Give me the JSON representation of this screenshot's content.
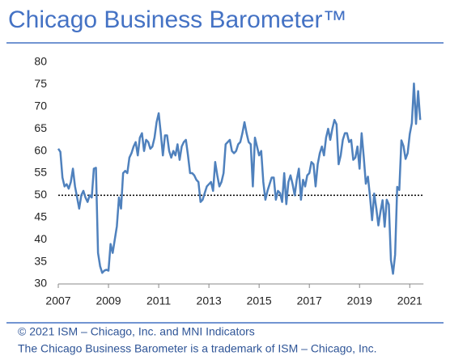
{
  "chart_data": {
    "type": "line",
    "title": "Chicago Business Barometer™",
    "footer": [
      "© 2021 ISM – Chicago, Inc. and MNI Indicators",
      "The Chicago Business Barometer is a trademark of ISM – Chicago, Inc."
    ],
    "categories": [
      "2007",
      null,
      null,
      null,
      null,
      null,
      null,
      null,
      null,
      null,
      null,
      null,
      null,
      null,
      null,
      null,
      null,
      null,
      null,
      null,
      null,
      null,
      null,
      null,
      "2009",
      null,
      null,
      null,
      null,
      null,
      null,
      null,
      null,
      null,
      null,
      null,
      null,
      null,
      null,
      null,
      null,
      null,
      null,
      null,
      null,
      null,
      null,
      null,
      "2011",
      null,
      null,
      null,
      null,
      null,
      null,
      null,
      null,
      null,
      null,
      null,
      null,
      null,
      null,
      null,
      null,
      null,
      null,
      null,
      null,
      null,
      null,
      null,
      "2013",
      null,
      null,
      null,
      null,
      null,
      null,
      null,
      null,
      null,
      null,
      null,
      null,
      null,
      null,
      null,
      null,
      null,
      null,
      null,
      null,
      null,
      null,
      null,
      "2015",
      null,
      null,
      null,
      null,
      null,
      null,
      null,
      null,
      null,
      null,
      null,
      null,
      null,
      null,
      null,
      null,
      null,
      null,
      null,
      null,
      null,
      null,
      null,
      "2017",
      null,
      null,
      null,
      null,
      null,
      null,
      null,
      null,
      null,
      null,
      null,
      null,
      null,
      null,
      null,
      null,
      null,
      null,
      null,
      null,
      null,
      null,
      null,
      "2019",
      null,
      null,
      null,
      null,
      null,
      null,
      null,
      null,
      null,
      null,
      null,
      null,
      null,
      null,
      null,
      null,
      null,
      null,
      null,
      null,
      null,
      null,
      null,
      "2021",
      null,
      null,
      null,
      null,
      null
    ],
    "series": [
      {
        "color": "#4f81bd",
        "values": [
          60.5,
          59.8,
          54,
          52,
          52.5,
          51.5,
          53,
          56,
          52,
          49.5,
          47,
          50,
          51,
          49.5,
          48.5,
          50,
          49.5,
          56,
          56.2,
          37,
          34,
          32.5,
          33,
          33.2,
          33,
          39,
          37,
          40,
          43,
          49.5,
          47,
          55,
          55.5,
          55,
          58.5,
          59.5,
          61,
          62,
          59,
          63,
          64,
          60,
          62.5,
          62,
          60.5,
          61,
          63,
          66.5,
          68.5,
          64,
          59,
          63.5,
          63.5,
          60,
          58.5,
          60,
          59,
          61.5,
          58,
          61,
          62,
          62.5,
          59,
          55,
          55,
          54.5,
          53.5,
          53,
          48.5,
          49,
          50.5,
          52,
          52.5,
          53,
          51,
          57.5,
          54.5,
          52,
          53,
          55,
          61.5,
          62,
          62.5,
          60,
          59.5,
          60,
          61.5,
          62,
          64,
          66.5,
          64,
          62,
          61.5,
          52,
          63,
          61,
          59,
          60,
          53,
          49,
          51,
          52.5,
          54,
          54,
          49,
          51,
          50.5,
          48.5,
          55,
          48,
          53,
          54.5,
          52.5,
          50,
          53.5,
          56,
          49,
          53.5,
          52,
          54.5,
          55,
          57.5,
          57,
          52,
          57,
          59.5,
          61,
          59,
          63,
          65,
          62.5,
          65,
          67,
          66,
          57,
          59,
          62.5,
          64,
          64,
          62,
          62.5,
          58,
          58.5,
          61,
          56,
          64,
          58.7,
          52.6,
          54.2,
          49.7,
          44.4,
          50.4,
          47.1,
          43.2,
          46.3,
          48.9,
          42.9,
          49,
          47.9,
          35.4,
          32.3,
          36.6,
          51.9,
          51.2,
          62.4,
          61.1,
          58.2,
          59.5,
          63.8,
          66.3,
          75.2,
          66.1,
          73.5,
          67
        ]
      }
    ],
    "reference_line": 50,
    "ylim": [
      30,
      80
    ],
    "yticks": [
      30,
      35,
      40,
      45,
      50,
      55,
      60,
      65,
      70,
      75,
      80
    ]
  }
}
